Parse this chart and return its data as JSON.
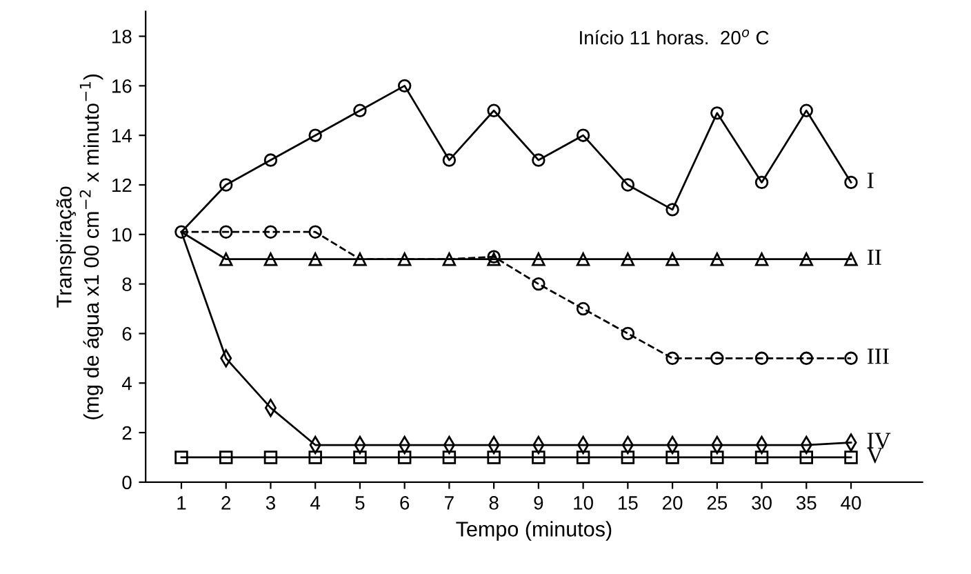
{
  "chart_data": {
    "type": "line",
    "xlabel": "Tempo (minutos)",
    "ylabel": "Transpiração\n(mg de água x1 00 cm$^{−2}$ x minuto$^{−1}$)",
    "categories": [
      "1",
      "2",
      "3",
      "4",
      "5",
      "6",
      "7",
      "8",
      "9",
      "10",
      "15",
      "20",
      "25",
      "30",
      "35",
      "40"
    ],
    "series": [
      {
        "name": "I",
        "color": "#000000",
        "marker": "circle",
        "line_style": "solid",
        "values": [
          10.1,
          12,
          13,
          14,
          15,
          16,
          13,
          15,
          13,
          14,
          12,
          11,
          14.9,
          12.1,
          15,
          12.1
        ]
      },
      {
        "name": "II",
        "color": "#000000",
        "marker": "triangle",
        "line_style": "solid",
        "values": [
          10.1,
          9,
          9,
          9,
          9,
          9,
          9,
          9,
          9,
          9,
          9,
          9,
          9,
          9,
          9,
          9
        ]
      },
      {
        "name": "III",
        "color": "#000000",
        "marker": "circle",
        "line_style": "dashed",
        "values": [
          10.1,
          10.1,
          10.1,
          10.1,
          9,
          9,
          9,
          9.1,
          8,
          7,
          6,
          5,
          5,
          5,
          5,
          5
        ]
      },
      {
        "name": "IV",
        "color": "#000000",
        "marker": "diamond",
        "line_style": "solid",
        "values": [
          10.1,
          5,
          3,
          1.5,
          1.5,
          1.5,
          1.5,
          1.5,
          1.5,
          1.5,
          1.5,
          1.5,
          1.5,
          1.5,
          1.5,
          1.6
        ]
      },
      {
        "name": "V",
        "color": "#000000",
        "marker": "square",
        "line_style": "solid",
        "values": [
          1,
          1,
          1,
          1,
          1,
          1,
          1,
          1,
          1,
          1,
          1,
          1,
          1,
          1,
          1,
          1
        ]
      }
    ],
    "ylim": [
      0,
      19
    ],
    "yticks": [
      0,
      2,
      4,
      6,
      8,
      10,
      12,
      14,
      16,
      18
    ],
    "grid": false,
    "legend": false,
    "annotations": [
      "Início 11 horas.  20$^{o}$ C"
    ]
  }
}
